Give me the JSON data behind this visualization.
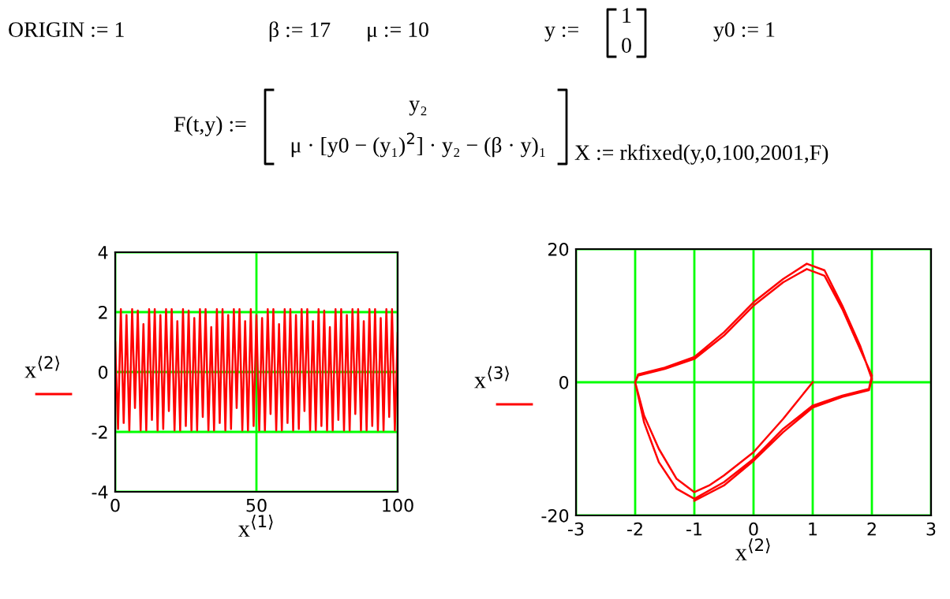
{
  "chart_data": [
    {
      "type": "line",
      "xlabel": "x$^{⟨1⟩}$",
      "ylabel": "x$^{⟨2⟩}$",
      "xlim": [
        0,
        100
      ],
      "ylim": [
        -4,
        4
      ],
      "xticks": [
        0,
        50,
        100
      ],
      "yticks": [
        -4,
        -2,
        0,
        2,
        4
      ],
      "grid": true,
      "annotations": [
        "ORIGIN := 1",
        "β := 17",
        "μ := 10",
        "y :=",
        "1",
        "0",
        "y0 := 1",
        "F(t,y) :=",
        "y₂",
        "μ · [y0 − (y₁)$^{2}$] · y₂ − (β · y)₁",
        "X := rkfixed(y,0,100,2001,F)"
      ],
      "series": [
        {
          "color": "#ff0000",
          "x": [
            0,
            1,
            2,
            3,
            4,
            5,
            6,
            7,
            8,
            9,
            10,
            11,
            12,
            13,
            14,
            15,
            16,
            17,
            18,
            19,
            20,
            21,
            22,
            23,
            24,
            25,
            26,
            27,
            28,
            29,
            30,
            31,
            32,
            33,
            34,
            35,
            36,
            37,
            38,
            39,
            40,
            41,
            42,
            43,
            44,
            45,
            46,
            47,
            48,
            49,
            50,
            51,
            52,
            53,
            54,
            55,
            56,
            57,
            58,
            59,
            60,
            61,
            62,
            63,
            64,
            65,
            66,
            67,
            68,
            69,
            70,
            71,
            72,
            73,
            74,
            75,
            76,
            77,
            78,
            79,
            80,
            81,
            82,
            83,
            84,
            85,
            86,
            87,
            88,
            89,
            90,
            91,
            92,
            93,
            94,
            95,
            96,
            97,
            98,
            99,
            100
          ],
          "values": [
            1,
            -1.9,
            2.1,
            -1.7,
            1.9,
            -1.95,
            2.1,
            -1.2,
            2.05,
            -1.95,
            1.6,
            -1.95,
            2.1,
            -1.6,
            2.1,
            -1.95,
            1.9,
            -1.9,
            2.1,
            -1.3,
            2.1,
            -1.95,
            1.7,
            -1.95,
            2.1,
            -1.8,
            2.05,
            -1.95,
            1.8,
            -1.95,
            2.1,
            -1.5,
            2.1,
            -1.95,
            1.5,
            -1.95,
            2.1,
            -1.7,
            2.1,
            -1.95,
            1.9,
            -1.9,
            2.1,
            -1.2,
            2.1,
            -1.95,
            1.7,
            -1.95,
            2.1,
            -1.8,
            1.9,
            -1.95,
            1.8,
            -1.95,
            2.1,
            -1.4,
            2.1,
            -1.95,
            1.6,
            -1.95,
            2.1,
            -1.7,
            2.1,
            -1.95,
            1.9,
            -1.9,
            2.1,
            -1.3,
            2.1,
            -1.95,
            1.7,
            -1.95,
            2.1,
            -1.8,
            2.05,
            -1.95,
            1.5,
            -1.95,
            2.1,
            -1.6,
            2.1,
            -1.95,
            1.9,
            -1.95,
            2.1,
            -1.4,
            2.1,
            -1.95,
            1.7,
            -1.95,
            2.1,
            -1.8,
            2.1,
            -1.95,
            1.8,
            -1.95,
            2.1,
            -1.5,
            2.1,
            -1.95,
            1.3
          ]
        }
      ]
    },
    {
      "type": "line",
      "xlabel": "x$^{⟨2⟩}$",
      "ylabel": "x$^{⟨3⟩}$",
      "xlim": [
        -3,
        3
      ],
      "ylim": [
        -20,
        20
      ],
      "xticks": [
        -3,
        -2,
        -1,
        0,
        1,
        2,
        3
      ],
      "yticks": [
        -20,
        0,
        20
      ],
      "grid": true,
      "series": [
        {
          "color": "#ff0000",
          "x": [
            1,
            0.5,
            0,
            -0.5,
            -0.75,
            -1,
            -1.3,
            -1.6,
            -1.85,
            -2,
            -1.95,
            -1.5,
            -1,
            -0.5,
            0,
            0.5,
            0.9,
            1.2,
            1.5,
            1.8,
            2,
            1.95,
            1.5,
            1,
            0.5,
            0,
            -0.5,
            -1,
            -1.3,
            -1.6,
            -1.85,
            -2,
            -1.95,
            -1.5,
            -1,
            -0.5,
            0,
            0.5,
            0.9,
            1.2,
            1.5,
            1.8,
            2,
            1.95,
            1.5,
            1,
            0.5,
            0,
            -0.5,
            -1
          ],
          "values": [
            0,
            -5.5,
            -10.5,
            -14,
            -15.5,
            -16.5,
            -14.5,
            -10,
            -5,
            0,
            1,
            2,
            3.5,
            7,
            11.5,
            15,
            17,
            16,
            11,
            5,
            1,
            -1,
            -2,
            -3.5,
            -7,
            -11.5,
            -15,
            -17.5,
            -16,
            -12,
            -6,
            0,
            1.2,
            2.2,
            3.8,
            7.5,
            12,
            15.5,
            17.8,
            16.8,
            11.5,
            5.5,
            0.5,
            -1.2,
            -2.2,
            -3.8,
            -7.5,
            -11.8,
            -15.5,
            -17.8
          ]
        }
      ]
    }
  ]
}
